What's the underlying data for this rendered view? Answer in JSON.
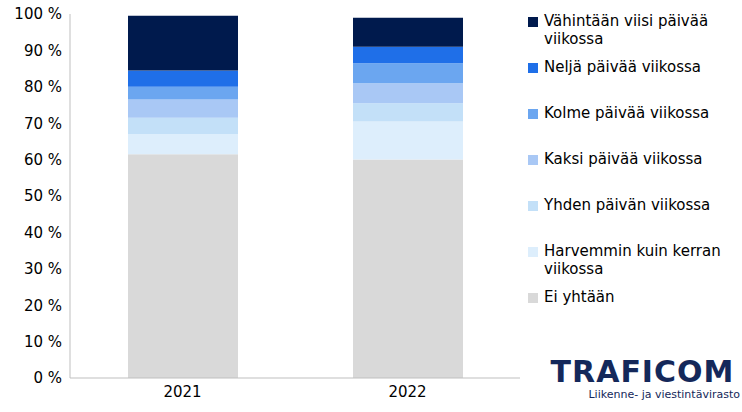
{
  "chart_data": {
    "type": "bar",
    "stacked": true,
    "grid": false,
    "legend": "right",
    "categories": [
      "2021",
      "2022"
    ],
    "series": [
      {
        "name": "Ei yhtään",
        "color": "#d9d9d9",
        "values": [
          61.5,
          60
        ]
      },
      {
        "name": "Harvemmin kuin kerran viikossa",
        "color": "#ddeefc",
        "values": [
          5.5,
          10.5
        ]
      },
      {
        "name": "Yhden päivän viikossa",
        "color": "#c3e0f8",
        "values": [
          4.5,
          5
        ]
      },
      {
        "name": "Kaksi päivää viikossa",
        "color": "#a9c8f5",
        "values": [
          5,
          5.5
        ]
      },
      {
        "name": "Kolme päivää viikossa",
        "color": "#6ba6f0",
        "values": [
          3.5,
          5.5
        ]
      },
      {
        "name": "Neljä päivää viikossa",
        "color": "#1f6fe8",
        "values": [
          4.5,
          4.5
        ]
      },
      {
        "name": "Vähintään viisi päivää viikossa",
        "color": "#001a4d",
        "values": [
          15,
          8
        ]
      }
    ],
    "ylim": [
      0,
      100
    ],
    "yticks": [
      {
        "value": 0,
        "label": "0 %"
      },
      {
        "value": 10,
        "label": "10 %"
      },
      {
        "value": 20,
        "label": "20 %"
      },
      {
        "value": 30,
        "label": "30 %"
      },
      {
        "value": 40,
        "label": "40 %"
      },
      {
        "value": 50,
        "label": "50 %"
      },
      {
        "value": 60,
        "label": "60 %"
      },
      {
        "value": 70,
        "label": "70 %"
      },
      {
        "value": 80,
        "label": "80 %"
      },
      {
        "value": 90,
        "label": "90 %"
      },
      {
        "value": 100,
        "label": "100 %"
      }
    ],
    "annotations": [
      "TRAFICOM",
      "Liikenne- ja viestintävirasto"
    ]
  }
}
